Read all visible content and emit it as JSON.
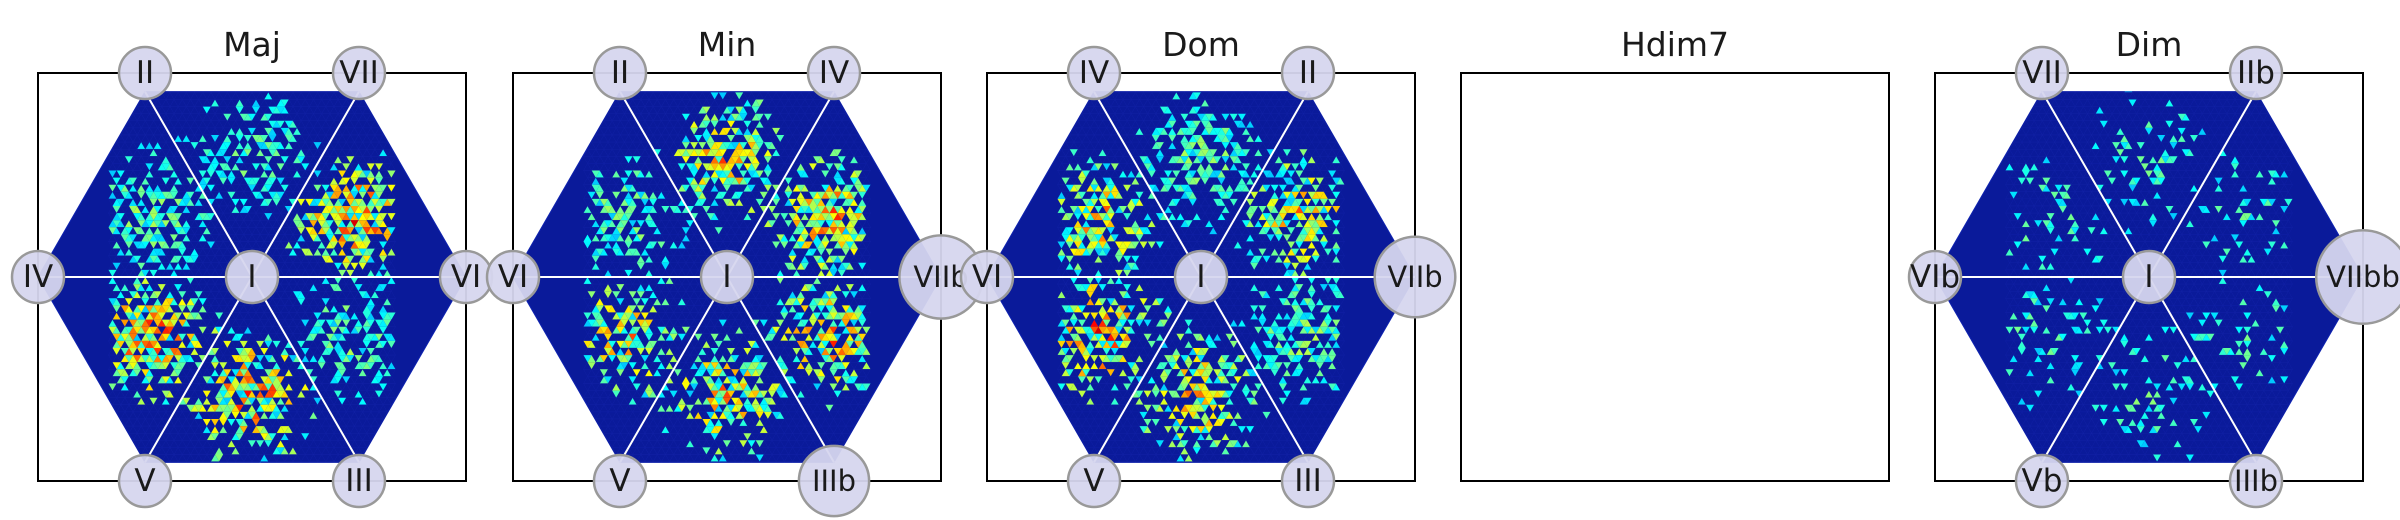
{
  "colors": {
    "hex_background": "#0a1a9a",
    "hex_edge": "#0f23b0",
    "spoke": "#ffffff",
    "node_fill": "#d6d6ee",
    "node_stroke": "#999999",
    "colormap": "jet"
  },
  "chart_data": [
    {
      "type": "heatmap",
      "title": "Maj",
      "center_label": "I",
      "nodes": [
        {
          "label": "II",
          "size": 1.0
        },
        {
          "label": "VII",
          "size": 1.0
        },
        {
          "label": "IV",
          "size": 1.0
        },
        {
          "label": "VI",
          "size": 1.0
        },
        {
          "label": "V",
          "size": 1.0
        },
        {
          "label": "III",
          "size": 1.0
        }
      ],
      "clusters": [
        {
          "sector": "upper-left",
          "density": 0.55,
          "max": 0.6
        },
        {
          "sector": "upper",
          "density": 0.45,
          "max": 0.55
        },
        {
          "sector": "right",
          "density": 0.7,
          "max": 0.95
        },
        {
          "sector": "lower-right",
          "density": 0.55,
          "max": 0.6
        },
        {
          "sector": "lower",
          "density": 0.65,
          "max": 0.95
        },
        {
          "sector": "lower-left",
          "density": 0.7,
          "max": 0.95
        }
      ],
      "empty": false
    },
    {
      "type": "heatmap",
      "title": "Min",
      "center_label": "I",
      "nodes": [
        {
          "label": "II",
          "size": 1.0
        },
        {
          "label": "IV",
          "size": 1.0
        },
        {
          "label": "VI",
          "size": 1.0
        },
        {
          "label": "VIIb",
          "size": 1.6
        },
        {
          "label": "V",
          "size": 1.0
        },
        {
          "label": "IIIb",
          "size": 1.35
        }
      ],
      "clusters": [
        {
          "sector": "upper-left",
          "density": 0.45,
          "max": 0.6
        },
        {
          "sector": "upper",
          "density": 0.65,
          "max": 0.85
        },
        {
          "sector": "right",
          "density": 0.75,
          "max": 0.9
        },
        {
          "sector": "lower-right",
          "density": 0.6,
          "max": 0.9
        },
        {
          "sector": "lower",
          "density": 0.55,
          "max": 0.85
        },
        {
          "sector": "lower-left",
          "density": 0.55,
          "max": 0.85
        }
      ],
      "empty": false
    },
    {
      "type": "heatmap",
      "title": "Dom",
      "center_label": "I",
      "nodes": [
        {
          "label": "IV",
          "size": 1.0
        },
        {
          "label": "II",
          "size": 1.0
        },
        {
          "label": "VI",
          "size": 1.0
        },
        {
          "label": "VIIb",
          "size": 1.55
        },
        {
          "label": "V",
          "size": 1.0
        },
        {
          "label": "III",
          "size": 1.0
        }
      ],
      "clusters": [
        {
          "sector": "upper-left",
          "density": 0.6,
          "max": 0.85
        },
        {
          "sector": "upper",
          "density": 0.6,
          "max": 0.6
        },
        {
          "sector": "right",
          "density": 0.6,
          "max": 0.85
        },
        {
          "sector": "lower-right",
          "density": 0.55,
          "max": 0.6
        },
        {
          "sector": "lower",
          "density": 0.6,
          "max": 0.85
        },
        {
          "sector": "lower-left",
          "density": 0.6,
          "max": 0.95
        }
      ],
      "empty": false
    },
    {
      "type": "heatmap",
      "title": "Hdim7",
      "center_label": "",
      "nodes": [],
      "clusters": [],
      "empty": true
    },
    {
      "type": "heatmap",
      "title": "Dim",
      "center_label": "I",
      "nodes": [
        {
          "label": "VII",
          "size": 1.0
        },
        {
          "label": "IIb",
          "size": 1.0
        },
        {
          "label": "VIb",
          "size": 1.0
        },
        {
          "label": "VIIbb",
          "size": 1.8
        },
        {
          "label": "Vb",
          "size": 1.0
        },
        {
          "label": "IIIb",
          "size": 1.0
        }
      ],
      "clusters": [
        {
          "sector": "upper-left",
          "density": 0.25,
          "max": 0.55
        },
        {
          "sector": "upper",
          "density": 0.2,
          "max": 0.55
        },
        {
          "sector": "right",
          "density": 0.2,
          "max": 0.55
        },
        {
          "sector": "lower-right",
          "density": 0.2,
          "max": 0.55
        },
        {
          "sector": "lower",
          "density": 0.2,
          "max": 0.55
        },
        {
          "sector": "lower-left",
          "density": 0.25,
          "max": 0.55
        }
      ],
      "empty": false
    }
  ]
}
